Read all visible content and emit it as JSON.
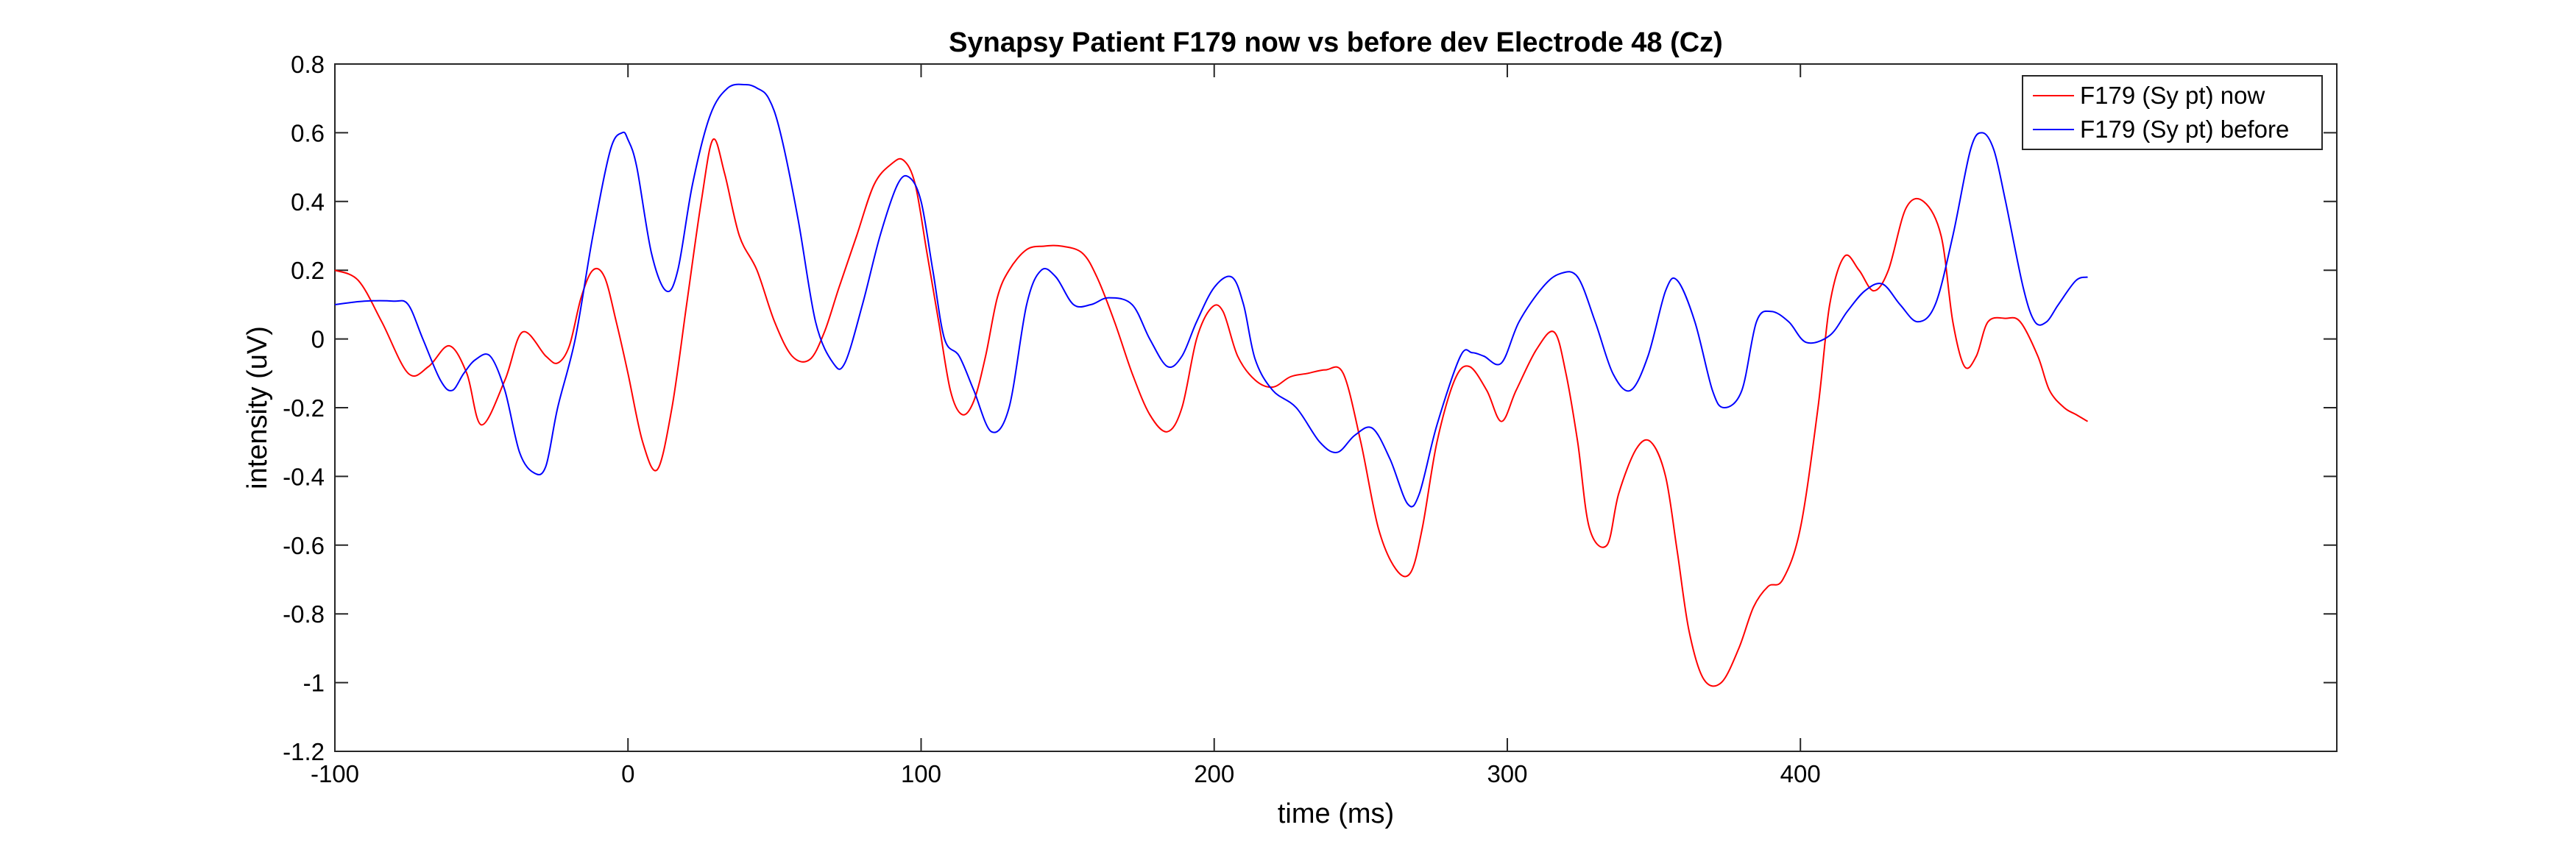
{
  "chart_data": {
    "type": "line",
    "title": "Synapsy Patient F179 now vs before dev Electrode 48 (Cz)",
    "xlabel": "time (ms)",
    "ylabel": "intensity (uV)",
    "xlim": [
      -100,
      583
    ],
    "ylim": [
      -1.2,
      0.8
    ],
    "xticks": [
      -100,
      0,
      100,
      200,
      300,
      400
    ],
    "yticks": [
      0.8,
      0.6,
      0.4,
      0.2,
      0,
      -0.2,
      -0.4,
      -0.6,
      -0.8,
      -1,
      -1.2
    ],
    "xtick_labels": [
      "-100",
      "0",
      "100",
      "200",
      "300",
      "400"
    ],
    "ytick_labels": [
      "0.8",
      "0.6",
      "0.4",
      "0.2",
      "0",
      "-0.2",
      "-0.4",
      "-0.6",
      "-0.8",
      "-1",
      "-1.2"
    ],
    "grid": false,
    "legend_position": "top-right",
    "series": [
      {
        "name": "F179 (Sy pt) now",
        "color": "#ff0000",
        "x": [
          -100,
          -92,
          -84,
          -75,
          -68,
          -61,
          -55,
          -50,
          -42,
          -36,
          -28,
          -24,
          -20,
          -16,
          -12,
          -8,
          -4,
          0,
          5,
          10,
          15,
          20,
          25,
          29,
          33,
          38,
          44,
          50,
          56,
          62,
          67,
          72,
          78,
          84,
          90,
          94,
          98,
          102,
          106,
          110,
          114,
          118,
          122,
          126,
          130,
          136,
          142,
          148,
          155,
          160,
          166,
          172,
          178,
          184,
          189,
          194,
          199,
          203,
          208,
          214,
          220,
          226,
          232,
          238,
          244,
          250,
          256,
          262,
          267,
          271,
          276,
          282,
          287,
          293,
          298,
          303,
          310,
          316,
          320,
          324,
          328,
          334,
          338,
          344,
          349,
          354,
          358,
          362,
          367,
          373,
          379,
          384,
          389,
          394,
          400,
          406,
          410,
          415,
          420,
          425,
          430,
          436,
          442,
          448,
          452,
          456,
          460,
          464,
          470,
          475,
          481,
          485,
          490,
          494,
          498
        ],
        "y": [
          0.2,
          0.17,
          0.05,
          -0.1,
          -0.08,
          -0.02,
          -0.1,
          -0.25,
          -0.12,
          0.02,
          -0.05,
          -0.07,
          -0.02,
          0.12,
          0.2,
          0.18,
          0.05,
          -0.1,
          -0.3,
          -0.38,
          -0.2,
          0.1,
          0.4,
          0.58,
          0.48,
          0.3,
          0.2,
          0.05,
          -0.05,
          -0.06,
          0.02,
          0.15,
          0.3,
          0.45,
          0.51,
          0.52,
          0.45,
          0.25,
          0.05,
          -0.15,
          -0.22,
          -0.18,
          -0.05,
          0.12,
          0.2,
          0.26,
          0.27,
          0.27,
          0.25,
          0.18,
          0.05,
          -0.1,
          -0.22,
          -0.27,
          -0.2,
          0.0,
          0.09,
          0.08,
          -0.05,
          -0.12,
          -0.14,
          -0.11,
          -0.1,
          -0.09,
          -0.1,
          -0.3,
          -0.55,
          -0.67,
          -0.68,
          -0.55,
          -0.3,
          -0.12,
          -0.08,
          -0.15,
          -0.24,
          -0.15,
          -0.03,
          0.02,
          -0.1,
          -0.3,
          -0.55,
          -0.6,
          -0.45,
          -0.32,
          -0.3,
          -0.4,
          -0.62,
          -0.85,
          -0.99,
          -1.0,
          -0.9,
          -0.78,
          -0.72,
          -0.7,
          -0.55,
          -0.2,
          0.1,
          0.24,
          0.2,
          0.14,
          0.2,
          0.38,
          0.4,
          0.3,
          0.05,
          -0.08,
          -0.05,
          0.05,
          0.06,
          0.05,
          -0.05,
          -0.15,
          -0.2,
          -0.22,
          -0.24
        ]
      },
      {
        "name": "F179 (Sy pt) before",
        "color": "#0000ff",
        "x": [
          -100,
          -90,
          -80,
          -75,
          -70,
          -64,
          -60,
          -56,
          -52,
          -47,
          -42,
          -37,
          -32,
          -28,
          -24,
          -18,
          -12,
          -6,
          -2,
          0,
          3,
          8,
          13,
          17,
          22,
          28,
          34,
          40,
          44,
          48,
          52,
          58,
          64,
          70,
          74,
          80,
          86,
          92,
          96,
          100,
          104,
          108,
          113,
          118,
          124,
          130,
          136,
          141,
          146,
          152,
          158,
          164,
          172,
          178,
          184,
          189,
          194,
          200,
          206,
          210,
          214,
          220,
          228,
          236,
          242,
          248,
          254,
          260,
          266,
          270,
          276,
          284,
          288,
          292,
          298,
          304,
          312,
          318,
          324,
          330,
          336,
          342,
          348,
          354,
          358,
          364,
          370,
          374,
          380,
          385,
          390,
          396,
          402,
          410,
          416,
          422,
          428,
          434,
          440,
          446,
          452,
          458,
          462,
          466,
          470,
          476,
          480,
          484,
          488,
          494,
          498
        ],
        "y": [
          0.1,
          0.11,
          0.11,
          0.1,
          0.0,
          -0.12,
          -0.15,
          -0.1,
          -0.06,
          -0.05,
          -0.15,
          -0.33,
          -0.39,
          -0.37,
          -0.2,
          0.0,
          0.3,
          0.55,
          0.6,
          0.58,
          0.5,
          0.25,
          0.14,
          0.2,
          0.45,
          0.65,
          0.73,
          0.74,
          0.73,
          0.7,
          0.6,
          0.35,
          0.05,
          -0.07,
          -0.07,
          0.1,
          0.3,
          0.45,
          0.47,
          0.4,
          0.2,
          0.0,
          -0.05,
          -0.15,
          -0.27,
          -0.2,
          0.1,
          0.2,
          0.18,
          0.1,
          0.1,
          0.12,
          0.1,
          0.0,
          -0.08,
          -0.05,
          0.05,
          0.15,
          0.18,
          0.1,
          -0.06,
          -0.15,
          -0.2,
          -0.3,
          -0.33,
          -0.28,
          -0.26,
          -0.35,
          -0.48,
          -0.45,
          -0.25,
          -0.05,
          -0.04,
          -0.05,
          -0.07,
          0.05,
          0.15,
          0.19,
          0.18,
          0.05,
          -0.1,
          -0.15,
          -0.05,
          0.14,
          0.17,
          0.05,
          -0.15,
          -0.2,
          -0.15,
          0.05,
          0.08,
          0.05,
          -0.01,
          0.01,
          0.08,
          0.14,
          0.16,
          0.1,
          0.05,
          0.1,
          0.3,
          0.55,
          0.6,
          0.55,
          0.4,
          0.15,
          0.05,
          0.05,
          0.1,
          0.17,
          0.18
        ]
      }
    ]
  }
}
